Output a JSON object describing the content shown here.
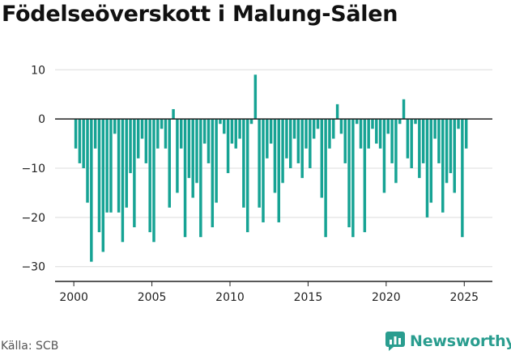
{
  "title": "Födelseöverskott i Malung-Sälen",
  "source": "Källa: SCB",
  "brand": {
    "name": "Newsworthy",
    "icon": "newsworthy-logo-icon",
    "color": "#2a9d8f"
  },
  "chart_data": {
    "type": "bar",
    "title": "Födelseöverskott i Malung-Sälen",
    "xlabel": "",
    "ylabel": "",
    "bar_color": "#16a394",
    "ylim": [
      -33,
      13
    ],
    "xlim": [
      1998.8,
      2026.8
    ],
    "yticks": [
      10,
      0,
      -10,
      -20,
      -30
    ],
    "ytick_labels": [
      "10",
      "0",
      "−10",
      "−20",
      "−30"
    ],
    "xticks": [
      2000,
      2005,
      2010,
      2015,
      2020,
      2025
    ],
    "xtick_labels": [
      "2000",
      "2005",
      "2010",
      "2015",
      "2020",
      "2025"
    ],
    "grid": true,
    "start_year": 2000,
    "periods_per_year": 4,
    "values": [
      -6,
      -9,
      -10,
      -17,
      -29,
      -6,
      -23,
      -27,
      -19,
      -19,
      -3,
      -19,
      -25,
      -18,
      -11,
      -22,
      -8,
      -4,
      -9,
      -23,
      -25,
      -6,
      -2,
      -6,
      -18,
      2,
      -15,
      -6,
      -24,
      -12,
      -16,
      -13,
      -24,
      -5,
      -9,
      -22,
      -17,
      -1,
      -3,
      -11,
      -5,
      -6,
      -4,
      -18,
      -23,
      -1,
      9,
      -18,
      -21,
      -8,
      -5,
      -15,
      -21,
      -13,
      -8,
      -10,
      -4,
      -9,
      -12,
      -6,
      -10,
      -4,
      -2,
      -16,
      -24,
      -6,
      -4,
      3,
      -3,
      -9,
      -22,
      -24,
      -1,
      -6,
      -23,
      -6,
      -2,
      -5,
      -6,
      -15,
      -3,
      -9,
      -13,
      -1,
      4,
      -8,
      -10,
      -1,
      -12,
      -9,
      -20,
      -17,
      -4,
      -9,
      -19,
      -13,
      -11,
      -15,
      -2,
      -24,
      -6
    ]
  }
}
